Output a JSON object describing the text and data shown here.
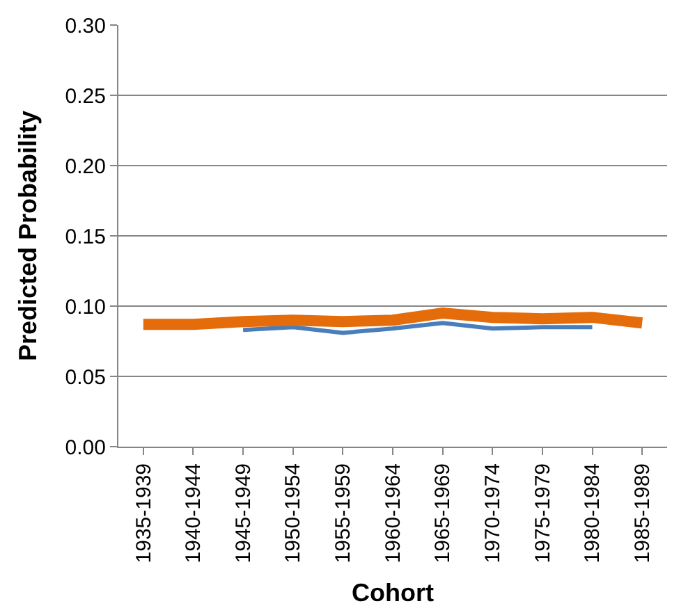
{
  "chart_data": {
    "type": "line",
    "xlabel": "Cohort",
    "ylabel": "Predicted Probability",
    "categories": [
      "1935-1939",
      "1940-1944",
      "1945-1949",
      "1950-1954",
      "1955-1959",
      "1960-1964",
      "1965-1969",
      "1970-1974",
      "1975-1979",
      "1980-1984",
      "1985-1989"
    ],
    "series": [
      {
        "color": "#4a7ebb",
        "values": [
          null,
          null,
          0.083,
          0.085,
          0.081,
          0.084,
          0.088,
          0.084,
          0.085,
          0.085,
          null
        ]
      },
      {
        "color": "#e46c0a",
        "values": [
          0.087,
          0.087,
          0.089,
          0.09,
          0.089,
          0.09,
          0.095,
          0.092,
          0.091,
          0.092,
          0.088
        ]
      }
    ],
    "ylim": [
      0,
      0.3
    ],
    "yticks": [
      {
        "value": 0,
        "label": "0.00"
      },
      {
        "value": 0.05,
        "label": "0.05"
      },
      {
        "value": 0.1,
        "label": "0.10"
      },
      {
        "value": 0.15,
        "label": "0.15"
      },
      {
        "value": 0.2,
        "label": "0.20"
      },
      {
        "value": 0.25,
        "label": "0.25"
      },
      {
        "value": 0.3,
        "label": "0.30"
      }
    ],
    "grid": "y",
    "marker": "none",
    "line_style": "solid"
  }
}
